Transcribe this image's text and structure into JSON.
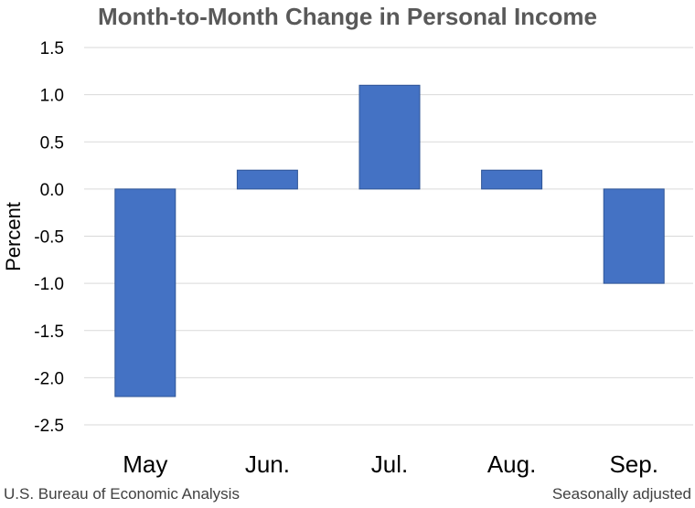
{
  "chart_data": {
    "type": "bar",
    "title": "Month-to-Month Change in Personal Income",
    "categories": [
      "May",
      "Jun.",
      "Jul.",
      "Aug.",
      "Sep."
    ],
    "values": [
      -2.2,
      0.2,
      1.1,
      0.2,
      -1.0
    ],
    "ylabel": "Percent",
    "xlabel": "",
    "ylim": [
      -2.5,
      1.5
    ],
    "yticks": [
      "1.5",
      "1.0",
      "0.5",
      "0.0",
      "-0.5",
      "-1.0",
      "-1.5",
      "-2.0",
      "-2.5"
    ],
    "grid": true,
    "bar_color": "#4472C4",
    "bar_edge_color": "#2F5597",
    "grid_color": "#D9D9D9",
    "title_color": "#595959"
  },
  "footer": {
    "source": "U.S. Bureau of Economic Analysis",
    "note": "Seasonally adjusted"
  }
}
